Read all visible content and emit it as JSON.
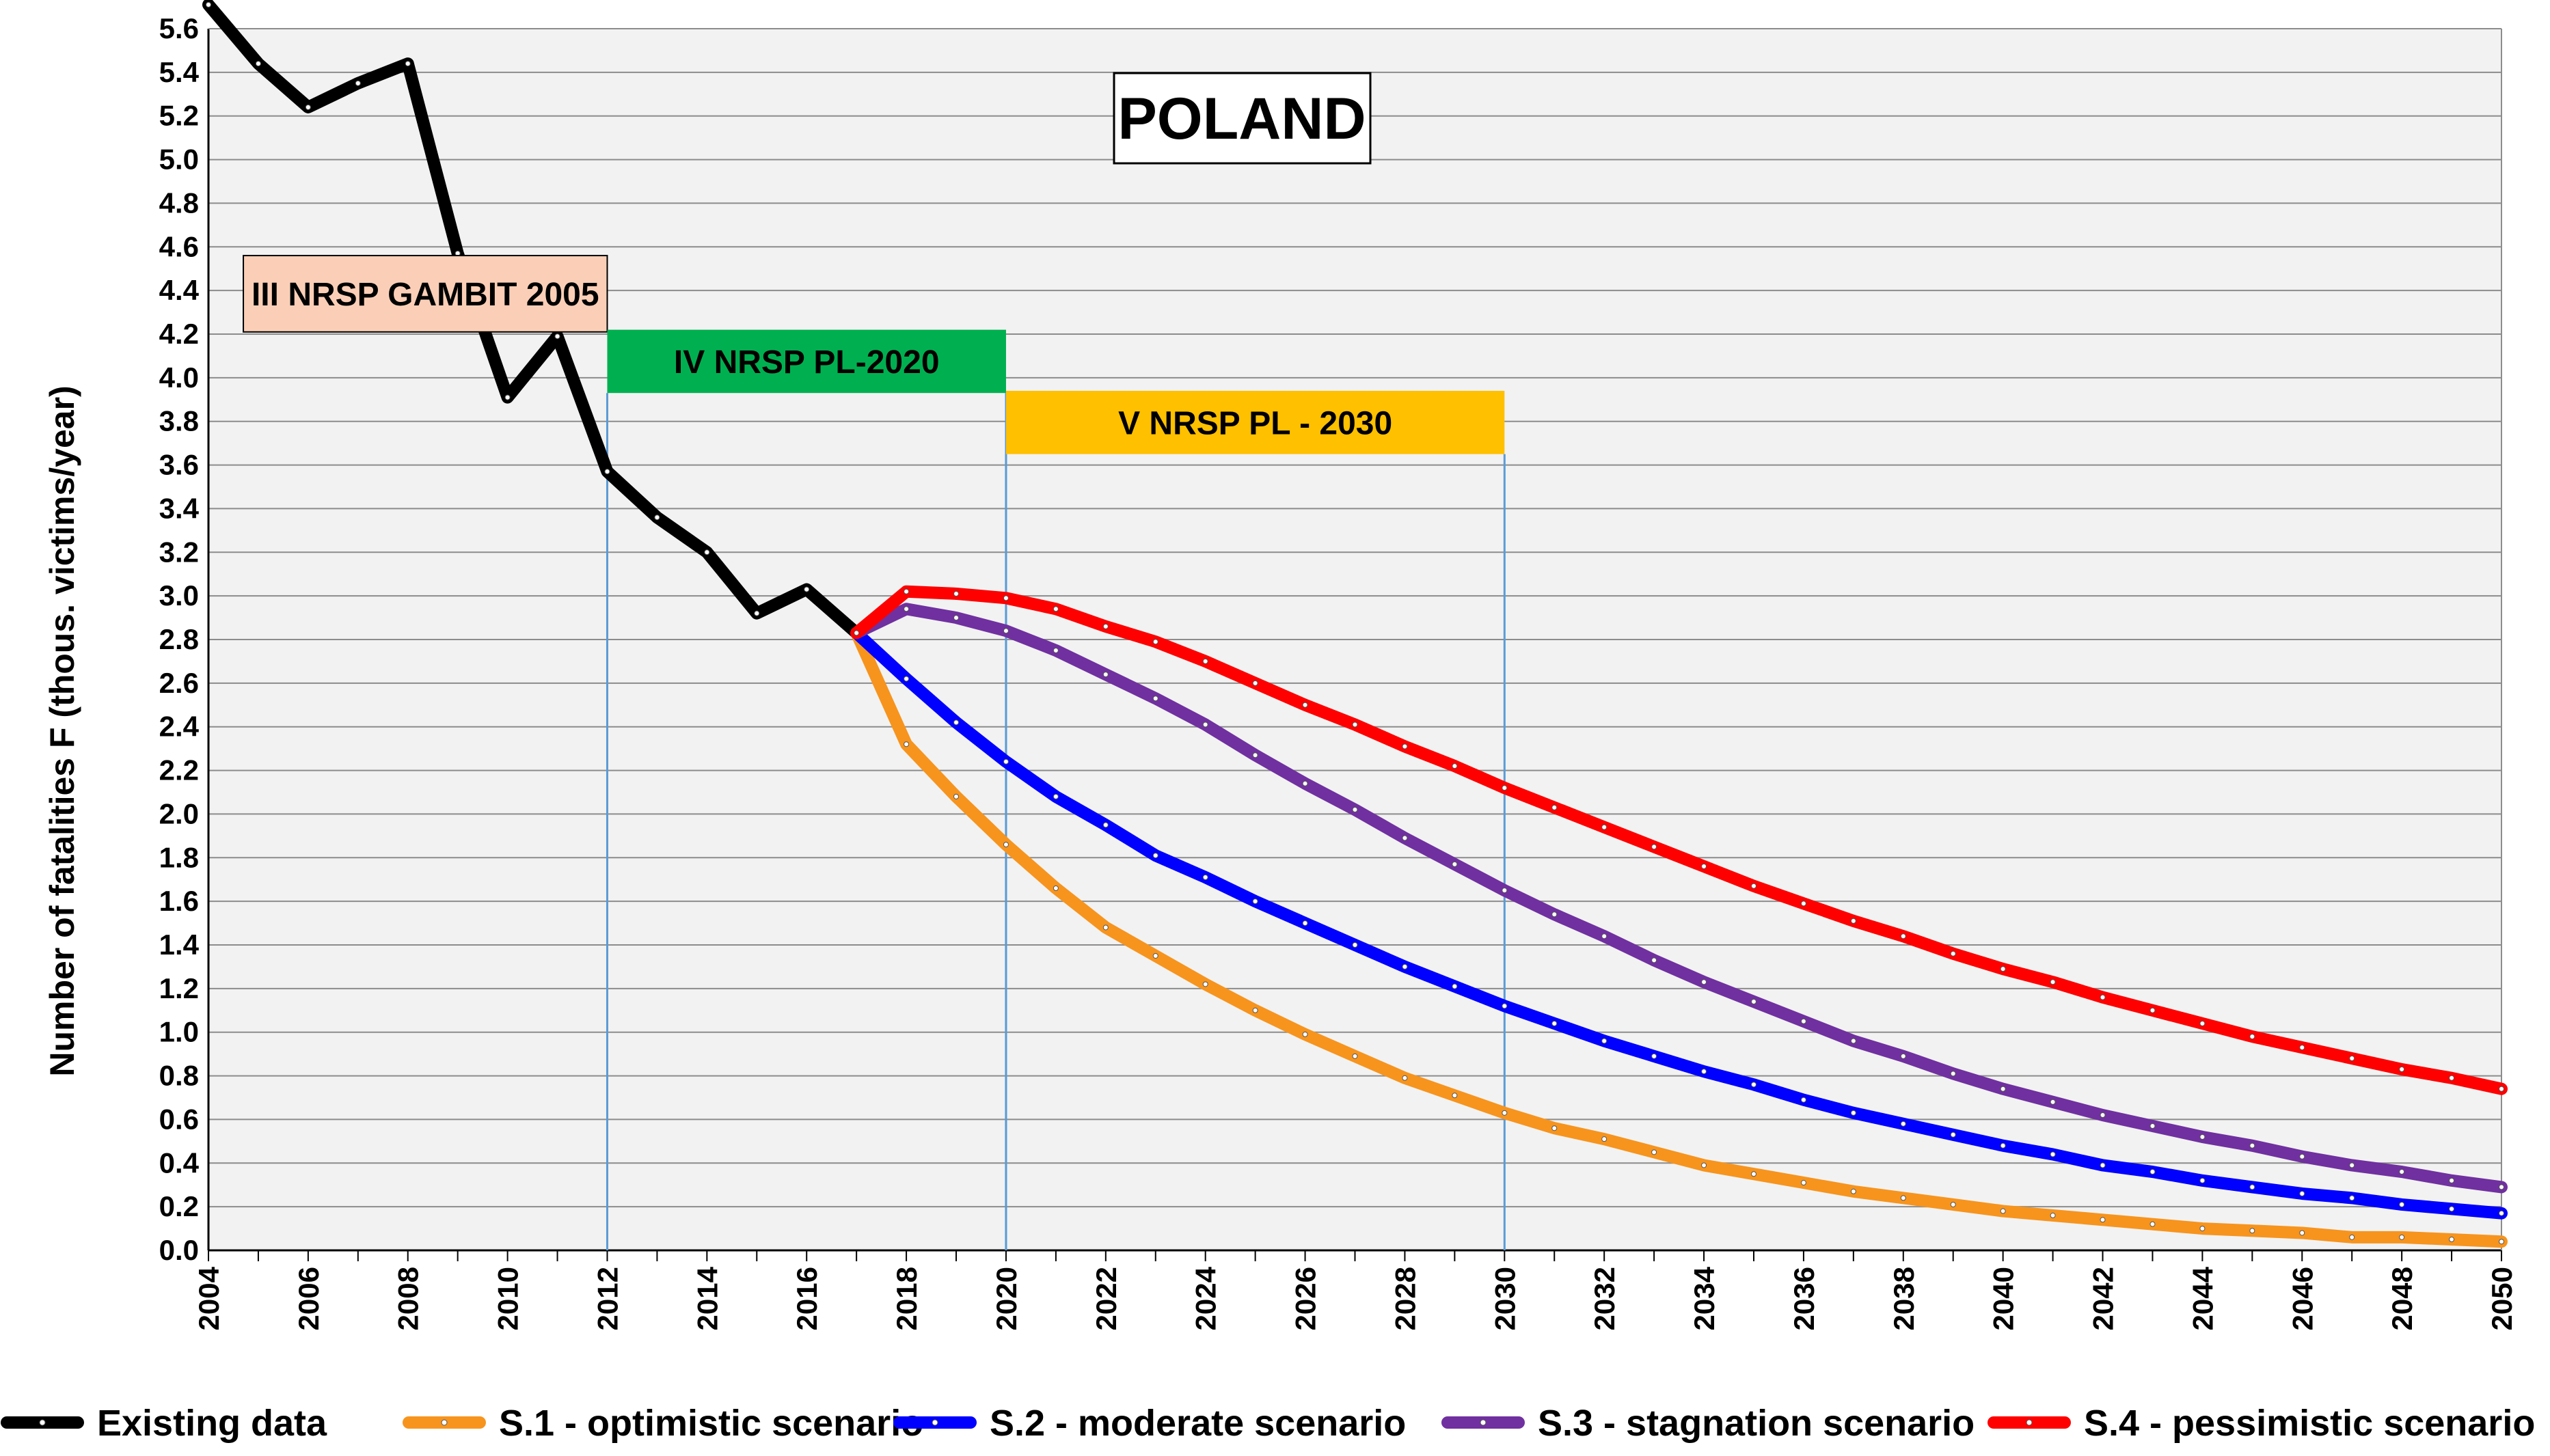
{
  "chart_data": {
    "type": "line",
    "title": "POLAND",
    "ylabel": "Number of fatalities F (thous. victims/year)",
    "xlabel": "",
    "xlim": [
      2004,
      2050
    ],
    "ylim": [
      0,
      5.6
    ],
    "ytick_step": 0.2,
    "xtick_step": 2,
    "grid": "horizontal",
    "legend_position": "bottom",
    "series": [
      {
        "name": "Existing data",
        "color": "#000000",
        "x": [
          2004,
          2005,
          2006,
          2007,
          2008,
          2009,
          2010,
          2011,
          2012,
          2013,
          2014,
          2015,
          2016,
          2017
        ],
        "values": [
          5.71,
          5.44,
          5.24,
          5.35,
          5.44,
          4.57,
          3.91,
          4.19,
          3.57,
          3.36,
          3.2,
          2.92,
          3.03,
          2.83
        ]
      },
      {
        "name": "S.1 - optimistic scenario",
        "color": "#F7941D",
        "x": [
          2017,
          2018,
          2019,
          2020,
          2021,
          2022,
          2023,
          2024,
          2025,
          2026,
          2027,
          2028,
          2029,
          2030,
          2031,
          2032,
          2033,
          2034,
          2035,
          2036,
          2037,
          2038,
          2039,
          2040,
          2041,
          2042,
          2043,
          2044,
          2045,
          2046,
          2047,
          2048,
          2049,
          2050
        ],
        "values": [
          2.83,
          2.32,
          2.08,
          1.86,
          1.66,
          1.48,
          1.35,
          1.22,
          1.1,
          0.99,
          0.89,
          0.79,
          0.71,
          0.63,
          0.56,
          0.51,
          0.45,
          0.39,
          0.35,
          0.31,
          0.27,
          0.24,
          0.21,
          0.18,
          0.16,
          0.14,
          0.12,
          0.1,
          0.09,
          0.08,
          0.06,
          0.06,
          0.05,
          0.04
        ]
      },
      {
        "name": "S.2 - moderate scenario",
        "color": "#0000FF",
        "x": [
          2017,
          2018,
          2019,
          2020,
          2021,
          2022,
          2023,
          2024,
          2025,
          2026,
          2027,
          2028,
          2029,
          2030,
          2031,
          2032,
          2033,
          2034,
          2035,
          2036,
          2037,
          2038,
          2039,
          2040,
          2041,
          2042,
          2043,
          2044,
          2045,
          2046,
          2047,
          2048,
          2049,
          2050
        ],
        "values": [
          2.83,
          2.62,
          2.42,
          2.24,
          2.08,
          1.95,
          1.81,
          1.71,
          1.6,
          1.5,
          1.4,
          1.3,
          1.21,
          1.12,
          1.04,
          0.96,
          0.89,
          0.82,
          0.76,
          0.69,
          0.63,
          0.58,
          0.53,
          0.48,
          0.44,
          0.39,
          0.36,
          0.32,
          0.29,
          0.26,
          0.24,
          0.21,
          0.19,
          0.17
        ]
      },
      {
        "name": "S.3 - stagnation scenario",
        "color": "#7030A0",
        "x": [
          2017,
          2018,
          2019,
          2020,
          2021,
          2022,
          2023,
          2024,
          2025,
          2026,
          2027,
          2028,
          2029,
          2030,
          2031,
          2032,
          2033,
          2034,
          2035,
          2036,
          2037,
          2038,
          2039,
          2040,
          2041,
          2042,
          2043,
          2044,
          2045,
          2046,
          2047,
          2048,
          2049,
          2050
        ],
        "values": [
          2.83,
          2.94,
          2.9,
          2.84,
          2.75,
          2.64,
          2.53,
          2.41,
          2.27,
          2.14,
          2.02,
          1.89,
          1.77,
          1.65,
          1.54,
          1.44,
          1.33,
          1.23,
          1.14,
          1.05,
          0.96,
          0.89,
          0.81,
          0.74,
          0.68,
          0.62,
          0.57,
          0.52,
          0.48,
          0.43,
          0.39,
          0.36,
          0.32,
          0.29
        ]
      },
      {
        "name": "S.4 - pessimistic scenario",
        "color": "#FF0000",
        "x": [
          2017,
          2018,
          2019,
          2020,
          2021,
          2022,
          2023,
          2024,
          2025,
          2026,
          2027,
          2028,
          2029,
          2030,
          2031,
          2032,
          2033,
          2034,
          2035,
          2036,
          2037,
          2038,
          2039,
          2040,
          2041,
          2042,
          2043,
          2044,
          2045,
          2046,
          2047,
          2048,
          2049,
          2050
        ],
        "values": [
          2.83,
          3.02,
          3.01,
          2.99,
          2.94,
          2.86,
          2.79,
          2.7,
          2.6,
          2.5,
          2.41,
          2.31,
          2.22,
          2.12,
          2.03,
          1.94,
          1.85,
          1.76,
          1.67,
          1.59,
          1.51,
          1.44,
          1.36,
          1.29,
          1.23,
          1.16,
          1.1,
          1.04,
          0.98,
          0.93,
          0.88,
          0.83,
          0.79,
          0.74
        ]
      }
    ],
    "periods": [
      {
        "label": "III NRSP GAMBIT 2005",
        "start": 2004.7,
        "end": 2012,
        "y_top": 4.56,
        "y_bottom": 4.21,
        "color": "#FBCFB7",
        "show_line": false
      },
      {
        "label": "IV NRSP PL-2020",
        "start": 2012,
        "end": 2020,
        "y_top": 4.22,
        "y_bottom": 3.93,
        "color": "#00B050",
        "show_line": true
      },
      {
        "label": "V NRSP  PL - 2030",
        "start": 2020,
        "end": 2030,
        "y_top": 3.94,
        "y_bottom": 3.65,
        "color": "#FFC000",
        "show_line": true
      }
    ]
  }
}
